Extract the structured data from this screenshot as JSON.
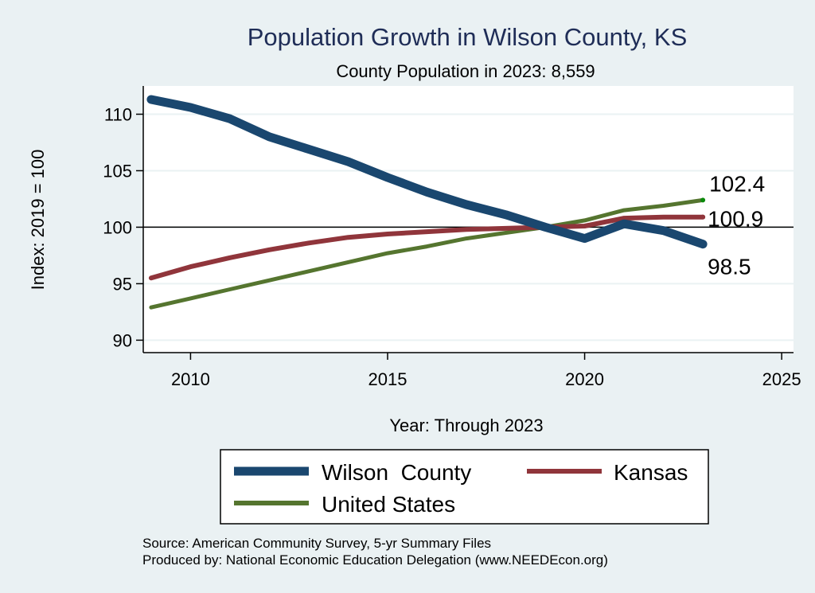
{
  "chart_data": {
    "type": "line",
    "title": "Population Growth in Wilson County, KS",
    "subtitle": "County Population in 2023: 8,559",
    "xlabel": "Year: Through 2023",
    "ylabel": "Index: 2019 = 100",
    "xlim": [
      2008.8,
      2025.3
    ],
    "ylim": [
      88.9,
      112.5
    ],
    "x_ticks": [
      2010,
      2015,
      2020,
      2025
    ],
    "y_ticks": [
      90,
      95,
      100,
      105,
      110
    ],
    "reference_line": 100,
    "grid": true,
    "x": [
      2009,
      2010,
      2011,
      2012,
      2013,
      2014,
      2015,
      2016,
      2017,
      2018,
      2019,
      2020,
      2021,
      2022,
      2023
    ],
    "series": [
      {
        "name": "Wilson  County",
        "color": "#1a476f",
        "values": [
          111.3,
          110.6,
          109.6,
          108.0,
          106.9,
          105.8,
          104.4,
          103.1,
          102.0,
          101.1,
          100.0,
          99.0,
          100.3,
          99.7,
          98.5
        ],
        "end_label": "98.5"
      },
      {
        "name": "Kansas",
        "color": "#90353b",
        "values": [
          95.5,
          96.5,
          97.3,
          98.0,
          98.6,
          99.1,
          99.4,
          99.6,
          99.8,
          99.9,
          100.0,
          100.1,
          100.8,
          100.9,
          100.9
        ],
        "end_label": "100.9"
      },
      {
        "name": "United States",
        "color": "#55752f",
        "values": [
          92.9,
          93.7,
          94.5,
          95.3,
          96.1,
          96.9,
          97.7,
          98.3,
          99.0,
          99.5,
          100.0,
          100.6,
          101.5,
          101.9,
          102.4
        ],
        "end_label": "102.4"
      }
    ],
    "legend": {
      "position": "bottom",
      "entries": [
        "Wilson  County",
        "Kansas",
        "United States"
      ]
    },
    "notes": [
      "Source: American Community Survey, 5-yr Summary Files",
      "Produced by: National Economic Education Delegation (www.NEEDEcon.org)"
    ]
  }
}
